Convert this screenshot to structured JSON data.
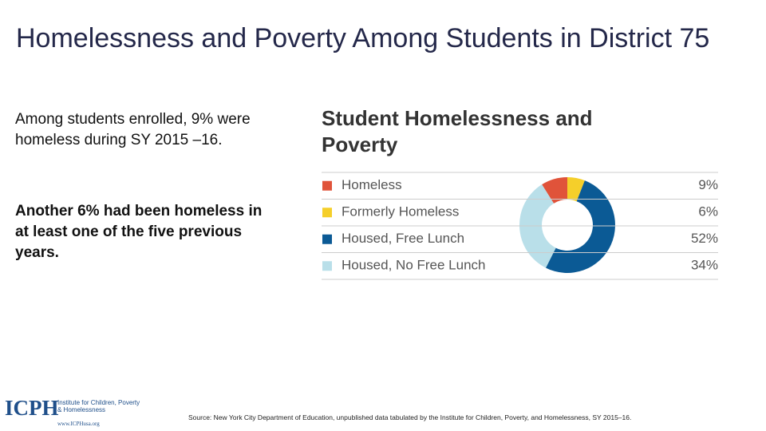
{
  "slide": {
    "title": "Homelessness and Poverty Among Students in District 75",
    "paragraphs": [
      "Among students enrolled, 9% were homeless during SY 2015 –16.",
      "Another 6% had been homeless in at least one of the five previous years."
    ],
    "source": "Source: New York City Department of Education, unpublished data tabulated by the Institute for Children, Poverty, and Homelessness, SY 2015–16.",
    "logo": {
      "name": "ICPH",
      "subtitle": "Institute for Children, Poverty & Homelessness",
      "url": "www.ICPHusa.org"
    }
  },
  "chart_data": {
    "type": "pie",
    "donut": true,
    "title": "Student Homelessness and Poverty",
    "categories": [
      "Homeless",
      "Formerly Homeless",
      "Housed, Free Lunch",
      "Housed, No Free Lunch"
    ],
    "values": [
      9,
      6,
      52,
      34
    ],
    "value_labels": [
      "9%",
      "6%",
      "52%",
      "34%"
    ],
    "colors": [
      "#e0533a",
      "#f5cf2a",
      "#0b5a95",
      "#b9dfe9"
    ]
  }
}
